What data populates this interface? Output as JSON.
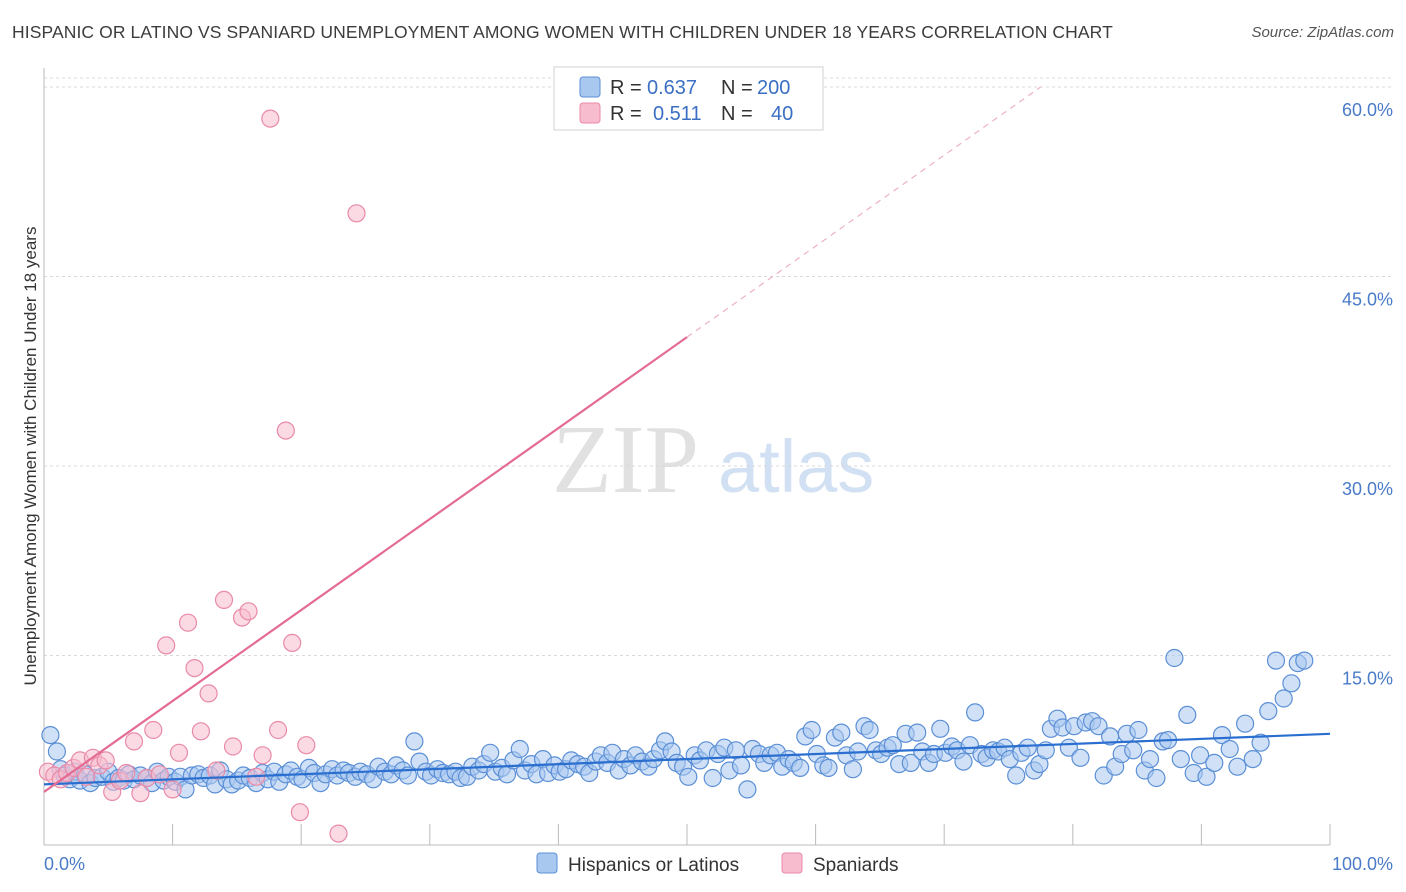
{
  "title": "HISPANIC OR LATINO VS SPANIARD UNEMPLOYMENT AMONG WOMEN WITH CHILDREN UNDER 18 YEARS CORRELATION CHART",
  "source": "Source: ZipAtlas.com",
  "watermark": {
    "zip": "ZIP",
    "atlas": "atlas"
  },
  "colors": {
    "blue_fill": "#a9c8f0",
    "blue_stroke": "#5b8fd6",
    "blue_line": "#2a6fd0",
    "pink_fill": "#f7bccd",
    "pink_stroke": "#e98aa8",
    "pink_line": "#e46b93",
    "tick_text": "#4a7bc8",
    "grid": "#d9d9d9"
  },
  "legend": {
    "rows": [
      {
        "r_label": "R =",
        "r_value": "0.637",
        "n_label": "N =",
        "n_value": "200",
        "series": "blue"
      },
      {
        "r_label": "R =",
        "r_value": "0.511",
        "n_label": "N =",
        "n_value": "40",
        "series": "pink"
      }
    ]
  },
  "bottom_legend": [
    {
      "label": "Hispanics or Latinos",
      "series": "blue"
    },
    {
      "label": "Spaniards",
      "series": "pink"
    }
  ],
  "chart_data": {
    "type": "scatter",
    "title": "HISPANIC OR LATINO VS SPANIARD UNEMPLOYMENT AMONG WOMEN WITH CHILDREN UNDER 18 YEARS CORRELATION CHART",
    "xlabel": "",
    "ylabel": "Unemployment Among Women with Children Under 18 years",
    "xlim": [
      0,
      100
    ],
    "ylim": [
      0,
      62.5
    ],
    "x_tick_labels": [
      "0.0%",
      "100.0%"
    ],
    "y_ticks": [
      15,
      30,
      45,
      60
    ],
    "y_tick_labels": [
      "15.0%",
      "30.0%",
      "45.0%",
      "60.0%"
    ],
    "grid": true,
    "legend_position": "top-center",
    "series": [
      {
        "name": "Hispanics or Latinos",
        "color": "blue",
        "trend": {
          "x0": 0,
          "y0": 4.8,
          "x1": 100,
          "y1": 8.8
        },
        "points": [
          [
            0.5,
            8.7
          ],
          [
            1,
            7.4
          ],
          [
            1.3,
            6
          ],
          [
            1.6,
            5.5
          ],
          [
            2,
            5.2
          ],
          [
            2.4,
            5.8
          ],
          [
            2.8,
            5.1
          ],
          [
            3.2,
            5.6
          ],
          [
            3.6,
            4.9
          ],
          [
            4,
            5.3
          ],
          [
            4.5,
            5.4
          ],
          [
            5,
            5.8
          ],
          [
            5.4,
            5
          ],
          [
            5.8,
            5.3
          ],
          [
            6.2,
            5.1
          ],
          [
            6.6,
            5.6
          ],
          [
            7,
            5.2
          ],
          [
            7.5,
            5.5
          ],
          [
            8,
            5.3
          ],
          [
            8.4,
            4.9
          ],
          [
            8.8,
            5.8
          ],
          [
            9.3,
            5.1
          ],
          [
            9.7,
            5.4
          ],
          [
            10.2,
            5
          ],
          [
            10.6,
            5.4
          ],
          [
            11,
            4.4
          ],
          [
            11.5,
            5.5
          ],
          [
            12,
            5.6
          ],
          [
            12.4,
            5.3
          ],
          [
            12.9,
            5.5
          ],
          [
            13.3,
            4.8
          ],
          [
            13.7,
            5.9
          ],
          [
            14.2,
            5.2
          ],
          [
            14.6,
            4.8
          ],
          [
            15.1,
            5.1
          ],
          [
            15.5,
            5.5
          ],
          [
            16,
            5.3
          ],
          [
            16.5,
            4.9
          ],
          [
            17,
            5.7
          ],
          [
            17.4,
            5.2
          ],
          [
            17.9,
            5.8
          ],
          [
            18.3,
            5
          ],
          [
            18.8,
            5.6
          ],
          [
            19.2,
            5.9
          ],
          [
            19.7,
            5.4
          ],
          [
            20.1,
            5.2
          ],
          [
            20.6,
            6.1
          ],
          [
            21,
            5.7
          ],
          [
            21.5,
            4.9
          ],
          [
            21.9,
            5.6
          ],
          [
            22.4,
            6
          ],
          [
            22.8,
            5.5
          ],
          [
            23.3,
            5.9
          ],
          [
            23.7,
            5.7
          ],
          [
            24.2,
            5.4
          ],
          [
            24.6,
            5.8
          ],
          [
            25.1,
            5.6
          ],
          [
            25.6,
            5.2
          ],
          [
            26,
            6.2
          ],
          [
            26.5,
            5.8
          ],
          [
            27,
            5.6
          ],
          [
            27.4,
            6.3
          ],
          [
            27.9,
            5.9
          ],
          [
            28.3,
            5.5
          ],
          [
            28.8,
            8.2
          ],
          [
            29.2,
            6.6
          ],
          [
            29.7,
            5.8
          ],
          [
            30.1,
            5.5
          ],
          [
            30.6,
            6
          ],
          [
            31,
            5.7
          ],
          [
            31.5,
            5.6
          ],
          [
            32,
            5.8
          ],
          [
            32.4,
            5.3
          ],
          [
            32.9,
            5.4
          ],
          [
            33.3,
            6.2
          ],
          [
            33.8,
            5.9
          ],
          [
            34.2,
            6.4
          ],
          [
            34.7,
            7.3
          ],
          [
            35.1,
            5.8
          ],
          [
            35.6,
            6.1
          ],
          [
            36,
            5.6
          ],
          [
            36.5,
            6.7
          ],
          [
            37,
            7.6
          ],
          [
            37.4,
            5.9
          ],
          [
            37.9,
            6.4
          ],
          [
            38.3,
            5.6
          ],
          [
            38.8,
            6.8
          ],
          [
            39.2,
            5.7
          ],
          [
            39.7,
            6.3
          ],
          [
            40.1,
            5.8
          ],
          [
            40.6,
            6
          ],
          [
            41,
            6.7
          ],
          [
            41.5,
            6.4
          ],
          [
            42,
            6.2
          ],
          [
            42.4,
            5.7
          ],
          [
            42.9,
            6.6
          ],
          [
            43.3,
            7.1
          ],
          [
            43.8,
            6.5
          ],
          [
            44.2,
            7.3
          ],
          [
            44.7,
            5.9
          ],
          [
            45.1,
            6.8
          ],
          [
            45.6,
            6.3
          ],
          [
            46,
            7.1
          ],
          [
            46.5,
            6.6
          ],
          [
            47,
            6.2
          ],
          [
            47.4,
            6.8
          ],
          [
            47.9,
            7.5
          ],
          [
            48.3,
            8.2
          ],
          [
            48.8,
            7.4
          ],
          [
            49.2,
            6.5
          ],
          [
            49.7,
            6.2
          ],
          [
            50.1,
            5.4
          ],
          [
            50.6,
            7.1
          ],
          [
            51,
            6.7
          ],
          [
            51.5,
            7.5
          ],
          [
            52,
            5.3
          ],
          [
            52.4,
            7.2
          ],
          [
            52.9,
            7.7
          ],
          [
            53.3,
            5.9
          ],
          [
            53.8,
            7.5
          ],
          [
            54.2,
            6.3
          ],
          [
            54.7,
            4.4
          ],
          [
            55.1,
            7.6
          ],
          [
            55.6,
            7.2
          ],
          [
            56,
            6.5
          ],
          [
            56.5,
            7.1
          ],
          [
            57,
            7.3
          ],
          [
            57.4,
            6.2
          ],
          [
            57.9,
            6.8
          ],
          [
            58.3,
            6.5
          ],
          [
            58.8,
            6.1
          ],
          [
            59.2,
            8.6
          ],
          [
            59.7,
            9.1
          ],
          [
            60.1,
            7.2
          ],
          [
            60.6,
            6.3
          ],
          [
            61,
            6.1
          ],
          [
            61.5,
            8.5
          ],
          [
            62,
            8.9
          ],
          [
            62.4,
            7.1
          ],
          [
            62.9,
            6
          ],
          [
            63.3,
            7.4
          ],
          [
            63.8,
            9.4
          ],
          [
            64.2,
            9.1
          ],
          [
            64.7,
            7.5
          ],
          [
            65.1,
            7.2
          ],
          [
            65.6,
            7.7
          ],
          [
            66,
            7.9
          ],
          [
            66.5,
            6.4
          ],
          [
            67,
            8.8
          ],
          [
            67.4,
            6.5
          ],
          [
            67.9,
            8.9
          ],
          [
            68.3,
            7.4
          ],
          [
            68.8,
            6.5
          ],
          [
            69.2,
            7.2
          ],
          [
            69.7,
            9.2
          ],
          [
            70.1,
            7.3
          ],
          [
            70.6,
            7.8
          ],
          [
            71,
            7.5
          ],
          [
            71.5,
            6.6
          ],
          [
            72,
            7.9
          ],
          [
            72.4,
            10.5
          ],
          [
            72.9,
            7.2
          ],
          [
            73.3,
            6.9
          ],
          [
            73.8,
            7.5
          ],
          [
            74.2,
            7.4
          ],
          [
            74.7,
            7.7
          ],
          [
            75.1,
            6.8
          ],
          [
            75.6,
            5.5
          ],
          [
            76,
            7.3
          ],
          [
            76.5,
            7.7
          ],
          [
            77,
            5.9
          ],
          [
            77.4,
            6.4
          ],
          [
            77.9,
            7.5
          ],
          [
            78.3,
            9.2
          ],
          [
            78.8,
            10
          ],
          [
            79.2,
            9.3
          ],
          [
            79.7,
            7.7
          ],
          [
            80.1,
            9.4
          ],
          [
            80.6,
            6.9
          ],
          [
            81,
            9.7
          ],
          [
            81.5,
            9.8
          ],
          [
            82,
            9.4
          ],
          [
            82.4,
            5.5
          ],
          [
            82.9,
            8.6
          ],
          [
            83.3,
            6.2
          ],
          [
            83.8,
            7.2
          ],
          [
            84.2,
            8.8
          ],
          [
            84.7,
            7.5
          ],
          [
            85.1,
            9.1
          ],
          [
            85.6,
            5.9
          ],
          [
            86,
            6.8
          ],
          [
            86.5,
            5.3
          ],
          [
            87,
            8.2
          ],
          [
            87.4,
            8.3
          ],
          [
            87.9,
            14.8
          ],
          [
            88.4,
            6.8
          ],
          [
            88.9,
            10.3
          ],
          [
            89.4,
            5.7
          ],
          [
            89.9,
            7.1
          ],
          [
            90.4,
            5.4
          ],
          [
            91,
            6.5
          ],
          [
            91.6,
            8.7
          ],
          [
            92.2,
            7.6
          ],
          [
            92.8,
            6.2
          ],
          [
            93.4,
            9.6
          ],
          [
            94,
            6.8
          ],
          [
            94.6,
            8.1
          ],
          [
            95.2,
            10.6
          ],
          [
            95.8,
            14.6
          ],
          [
            96.4,
            11.6
          ],
          [
            97,
            12.8
          ],
          [
            97.5,
            14.4
          ],
          [
            98,
            14.6
          ]
        ]
      },
      {
        "name": "Spaniards",
        "color": "pink",
        "trend": {
          "x0": 0,
          "y0": 4.2,
          "x1": 50,
          "y1": 40.2,
          "dashed_to_x": 77.5,
          "dashed_to_y": 60
        },
        "points": [
          [
            0.3,
            5.8
          ],
          [
            0.8,
            5.5
          ],
          [
            1.3,
            5.2
          ],
          [
            1.8,
            5.7
          ],
          [
            2.3,
            6.1
          ],
          [
            2.8,
            6.7
          ],
          [
            3.3,
            5.4
          ],
          [
            3.8,
            6.9
          ],
          [
            4.3,
            6.3
          ],
          [
            4.8,
            6.7
          ],
          [
            5.3,
            4.2
          ],
          [
            5.9,
            5.1
          ],
          [
            6.4,
            5.7
          ],
          [
            7,
            8.2
          ],
          [
            7.5,
            4.1
          ],
          [
            8,
            5.3
          ],
          [
            8.5,
            9.1
          ],
          [
            9,
            5.6
          ],
          [
            9.5,
            15.8
          ],
          [
            10,
            4.4
          ],
          [
            10.5,
            7.3
          ],
          [
            11.2,
            17.6
          ],
          [
            11.7,
            14
          ],
          [
            12.2,
            9
          ],
          [
            12.8,
            12
          ],
          [
            13.4,
            5.9
          ],
          [
            14,
            19.4
          ],
          [
            14.7,
            7.8
          ],
          [
            15.4,
            18
          ],
          [
            15.9,
            18.5
          ],
          [
            16.5,
            5.4
          ],
          [
            17,
            7.1
          ],
          [
            17.6,
            57.5
          ],
          [
            18.2,
            9.1
          ],
          [
            18.8,
            32.8
          ],
          [
            19.3,
            16
          ],
          [
            19.9,
            2.6
          ],
          [
            20.4,
            7.9
          ],
          [
            22.9,
            0.9
          ],
          [
            24.3,
            50
          ]
        ]
      }
    ]
  }
}
